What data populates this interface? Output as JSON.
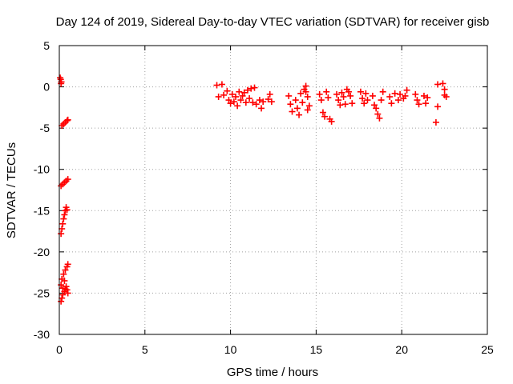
{
  "chart_data": {
    "type": "scatter",
    "title": "Day 124 of 2019, Sidereal Day-to-day VTEC variation (SDTVAR) for receiver gisb",
    "xlabel": "GPS time / hours",
    "ylabel": "SDTVAR / TECUs",
    "xlim": [
      0,
      25
    ],
    "ylim": [
      -30,
      5
    ],
    "xticks": [
      0,
      5,
      10,
      15,
      20,
      25
    ],
    "yticks": [
      5,
      0,
      -5,
      -10,
      -15,
      -20,
      -25,
      -30
    ],
    "grid": true,
    "marker": "+",
    "series_color": "#ff0000",
    "series": [
      {
        "name": "SDTVAR",
        "points": [
          [
            0.05,
            1.1
          ],
          [
            0.08,
            0.9
          ],
          [
            0.12,
            0.6
          ],
          [
            0.1,
            0.4
          ],
          [
            0.15,
            -4.7
          ],
          [
            0.25,
            -4.5
          ],
          [
            0.35,
            -4.3
          ],
          [
            0.45,
            -4.1
          ],
          [
            0.5,
            -4.0
          ],
          [
            0.1,
            -12.0
          ],
          [
            0.2,
            -11.8
          ],
          [
            0.3,
            -11.6
          ],
          [
            0.4,
            -11.4
          ],
          [
            0.5,
            -11.2
          ],
          [
            0.1,
            -17.8
          ],
          [
            0.15,
            -17.2
          ],
          [
            0.2,
            -16.6
          ],
          [
            0.25,
            -16.0
          ],
          [
            0.3,
            -15.5
          ],
          [
            0.35,
            -15.0
          ],
          [
            0.4,
            -14.6
          ],
          [
            0.45,
            -14.9
          ],
          [
            0.1,
            -26.0
          ],
          [
            0.15,
            -25.6
          ],
          [
            0.2,
            -25.2
          ],
          [
            0.3,
            -24.8
          ],
          [
            0.35,
            -24.5
          ],
          [
            0.4,
            -24.2
          ],
          [
            0.45,
            -24.6
          ],
          [
            0.5,
            -25.0
          ],
          [
            0.1,
            -24.0
          ],
          [
            0.15,
            -23.3
          ],
          [
            0.25,
            -22.7
          ],
          [
            0.3,
            -23.5
          ],
          [
            0.35,
            -22.2
          ],
          [
            0.45,
            -21.8
          ],
          [
            0.5,
            -21.5
          ],
          [
            0.2,
            -24.4
          ],
          [
            9.2,
            0.2
          ],
          [
            9.5,
            0.3
          ],
          [
            9.3,
            -1.2
          ],
          [
            9.6,
            -1.0
          ],
          [
            9.8,
            -0.5
          ],
          [
            9.9,
            -1.6
          ],
          [
            10.0,
            -2.0
          ],
          [
            10.2,
            -1.8
          ],
          [
            10.1,
            -0.9
          ],
          [
            10.3,
            -1.2
          ],
          [
            10.5,
            -0.6
          ],
          [
            10.4,
            -2.3
          ],
          [
            10.6,
            -1.6
          ],
          [
            10.7,
            -1.1
          ],
          [
            10.8,
            -0.7
          ],
          [
            10.9,
            -1.9
          ],
          [
            11.0,
            -0.4
          ],
          [
            11.1,
            -1.4
          ],
          [
            11.2,
            -0.2
          ],
          [
            11.3,
            -1.9
          ],
          [
            11.4,
            -0.1
          ],
          [
            11.5,
            -2.1
          ],
          [
            11.7,
            -1.6
          ],
          [
            11.8,
            -2.6
          ],
          [
            11.9,
            -1.8
          ],
          [
            12.2,
            -1.5
          ],
          [
            12.3,
            -0.9
          ],
          [
            12.4,
            -1.8
          ],
          [
            13.4,
            -1.1
          ],
          [
            13.5,
            -2.1
          ],
          [
            13.6,
            -3.0
          ],
          [
            13.8,
            -1.6
          ],
          [
            13.9,
            -2.6
          ],
          [
            14.0,
            -3.4
          ],
          [
            14.1,
            -0.8
          ],
          [
            14.2,
            -1.9
          ],
          [
            14.3,
            -0.3
          ],
          [
            14.4,
            0.1
          ],
          [
            14.5,
            -1.2
          ],
          [
            14.6,
            -2.3
          ],
          [
            14.4,
            -0.6
          ],
          [
            14.5,
            -2.8
          ],
          [
            15.2,
            -0.9
          ],
          [
            15.3,
            -1.6
          ],
          [
            15.4,
            -3.1
          ],
          [
            15.5,
            -3.6
          ],
          [
            15.6,
            -0.6
          ],
          [
            15.7,
            -1.3
          ],
          [
            15.8,
            -3.9
          ],
          [
            15.9,
            -4.2
          ],
          [
            16.2,
            -0.9
          ],
          [
            16.3,
            -1.6
          ],
          [
            16.4,
            -2.2
          ],
          [
            16.5,
            -0.7
          ],
          [
            16.6,
            -1.2
          ],
          [
            16.7,
            -2.1
          ],
          [
            16.8,
            -0.3
          ],
          [
            16.9,
            -0.6
          ],
          [
            17.0,
            -1.1
          ],
          [
            17.1,
            -2.0
          ],
          [
            17.6,
            -0.6
          ],
          [
            17.7,
            -1.4
          ],
          [
            17.8,
            -2.0
          ],
          [
            17.9,
            -0.8
          ],
          [
            18.0,
            -1.6
          ],
          [
            18.3,
            -1.1
          ],
          [
            18.4,
            -2.2
          ],
          [
            18.5,
            -2.6
          ],
          [
            18.6,
            -3.3
          ],
          [
            18.7,
            -3.8
          ],
          [
            18.8,
            -1.6
          ],
          [
            18.9,
            -0.6
          ],
          [
            19.3,
            -1.2
          ],
          [
            19.4,
            -2.0
          ],
          [
            19.6,
            -0.8
          ],
          [
            19.8,
            -1.6
          ],
          [
            19.9,
            -0.9
          ],
          [
            20.1,
            -1.4
          ],
          [
            20.2,
            -1.1
          ],
          [
            20.3,
            -0.4
          ],
          [
            20.8,
            -0.9
          ],
          [
            20.9,
            -1.6
          ],
          [
            21.0,
            -2.1
          ],
          [
            21.3,
            -1.1
          ],
          [
            21.4,
            -2.0
          ],
          [
            21.5,
            -1.3
          ],
          [
            22.0,
            -4.3
          ],
          [
            22.1,
            -2.4
          ],
          [
            22.1,
            0.3
          ],
          [
            22.4,
            0.4
          ],
          [
            22.5,
            -0.3
          ],
          [
            22.6,
            -1.2
          ],
          [
            22.5,
            -1.0
          ]
        ]
      }
    ]
  }
}
